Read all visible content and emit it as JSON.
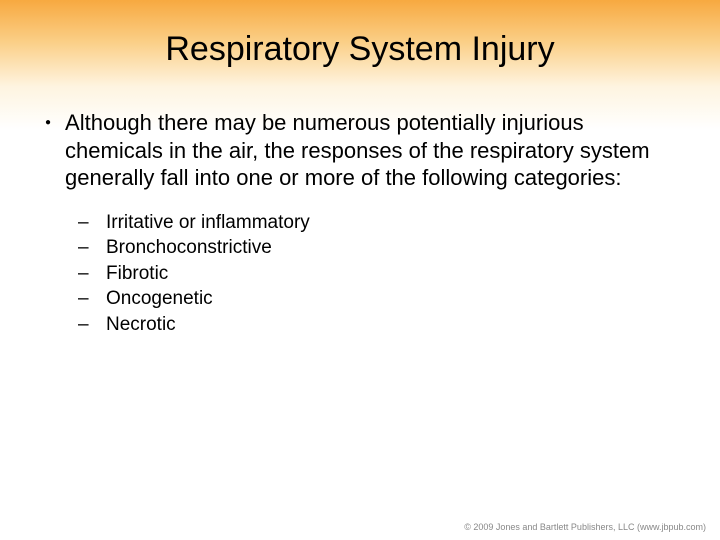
{
  "slide": {
    "title": "Respiratory System Injury",
    "main_bullet": "Although there may be numerous potentially injurious chemicals in the air, the responses of the respiratory system generally fall into one or more of the following categories:",
    "sub_bullets": [
      "Irritative or inflammatory",
      "Bronchoconstrictive",
      "Fibrotic",
      "Oncogenetic",
      "Necrotic"
    ],
    "footer": "© 2009 Jones and Bartlett Publishers, LLC (www.jbpub.com)"
  },
  "style": {
    "gradient_top": "#f7a940",
    "gradient_mid": "#fef4e0",
    "background": "#ffffff",
    "title_fontsize": 34,
    "body_fontsize": 22,
    "sub_fontsize": 19,
    "text_color": "#000000",
    "footer_color": "#888888"
  }
}
